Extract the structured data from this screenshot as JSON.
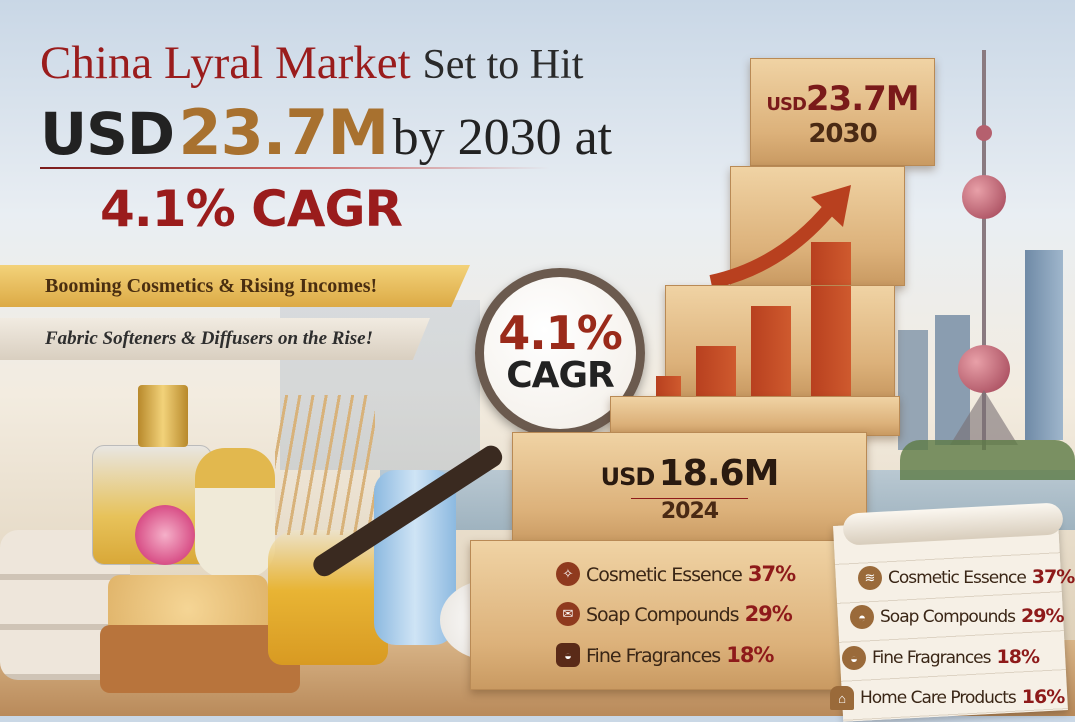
{
  "headline": {
    "line1_red": "China Lyral Market",
    "line1_dark": "Set to Hit",
    "line2_usd": "USD",
    "line2_value": "23.7M",
    "line2_rest": "by 2030 at",
    "line3": "4.1% CAGR"
  },
  "banners": [
    {
      "text": "Booming Cosmetics & Rising Incomes!"
    },
    {
      "text": "Fabric Softeners & Diffusers on the Rise!"
    }
  ],
  "magnifier": {
    "value": "4.1%",
    "label": "CAGR"
  },
  "blocks": {
    "top": {
      "prefix": "USD",
      "value": "23.7M",
      "year": "2030"
    },
    "base": {
      "prefix": "USD",
      "value": "18.6M",
      "year": "2024"
    }
  },
  "block_segments": [
    {
      "label": "Cosmetic Essence",
      "share": "37%",
      "icon": "perfume-icon"
    },
    {
      "label": "Soap Compounds",
      "share": "29%",
      "icon": "soap-icon"
    },
    {
      "label": "Fine Fragrances",
      "share": "18%",
      "icon": "handbag-icon"
    }
  ],
  "scroll_segments": [
    {
      "label": "Cosmetic Essence",
      "share": "37%",
      "icon": "layers-icon"
    },
    {
      "label": "Soap Compounds",
      "share": "29%",
      "icon": "bowl-icon"
    },
    {
      "label": "Fine Fragrances",
      "share": "18%",
      "icon": "bag-icon"
    },
    {
      "label": "Home Care Products",
      "share": "16%",
      "icon": "home-icon"
    }
  ],
  "colors": {
    "accent_red": "#8e1a1a",
    "gold": "#b07a3a",
    "wood": "#dcb17a"
  }
}
